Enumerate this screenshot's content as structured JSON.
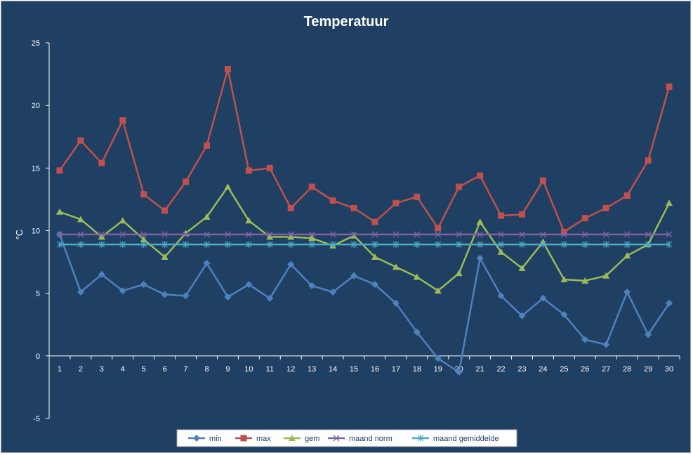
{
  "chart_data": {
    "type": "line",
    "title": "Temperatuur",
    "xlabel": "",
    "ylabel": "°C",
    "ylim": [
      -5,
      25
    ],
    "yticks": [
      -5,
      0,
      5,
      10,
      15,
      20,
      25
    ],
    "grid": false,
    "legend_position": "bottom",
    "categories": [
      "1",
      "2",
      "3",
      "4",
      "5",
      "6",
      "7",
      "8",
      "9",
      "10",
      "11",
      "12",
      "13",
      "14",
      "15",
      "16",
      "17",
      "18",
      "19",
      "20",
      "21",
      "22",
      "23",
      "24",
      "25",
      "26",
      "27",
      "28",
      "29",
      "30"
    ],
    "series": [
      {
        "name": "min",
        "color": "#4f81bd",
        "marker": "diamond",
        "values": [
          9.7,
          5.1,
          6.5,
          5.2,
          5.7,
          4.9,
          4.8,
          7.4,
          4.7,
          5.7,
          4.6,
          7.3,
          5.6,
          5.1,
          6.4,
          5.7,
          4.2,
          1.9,
          -0.2,
          -1.3,
          7.8,
          4.8,
          3.2,
          4.6,
          3.3,
          1.3,
          0.9,
          5.1,
          1.7,
          4.2
        ]
      },
      {
        "name": "max",
        "color": "#c0504d",
        "marker": "square",
        "values": [
          14.8,
          17.2,
          15.4,
          18.8,
          12.9,
          11.6,
          13.9,
          16.8,
          22.9,
          14.8,
          15.0,
          11.8,
          13.5,
          12.4,
          11.8,
          10.7,
          12.2,
          12.7,
          10.2,
          13.5,
          14.4,
          11.2,
          11.3,
          14.0,
          9.9,
          11.0,
          11.8,
          12.8,
          15.6,
          21.5
        ]
      },
      {
        "name": "gem",
        "color": "#9bbb59",
        "marker": "triangle",
        "values": [
          11.5,
          10.9,
          9.5,
          10.8,
          9.3,
          7.9,
          9.8,
          11.1,
          13.5,
          10.8,
          9.5,
          9.5,
          9.4,
          8.8,
          9.6,
          7.9,
          7.1,
          6.3,
          5.2,
          6.6,
          10.7,
          8.3,
          7.0,
          9.1,
          6.1,
          6.0,
          6.4,
          8.0,
          8.9,
          12.2
        ]
      },
      {
        "name": "maand norm",
        "color": "#8064a2",
        "marker": "x",
        "values": [
          9.7,
          9.7,
          9.7,
          9.7,
          9.7,
          9.7,
          9.7,
          9.7,
          9.7,
          9.7,
          9.7,
          9.7,
          9.7,
          9.7,
          9.7,
          9.7,
          9.7,
          9.7,
          9.7,
          9.7,
          9.7,
          9.7,
          9.7,
          9.7,
          9.7,
          9.7,
          9.7,
          9.7,
          9.7,
          9.7
        ]
      },
      {
        "name": "maand gemiddelde",
        "color": "#4bacc6",
        "marker": "star",
        "values": [
          8.9,
          8.9,
          8.9,
          8.9,
          8.9,
          8.9,
          8.9,
          8.9,
          8.9,
          8.9,
          8.9,
          8.9,
          8.9,
          8.9,
          8.9,
          8.9,
          8.9,
          8.9,
          8.9,
          8.9,
          8.9,
          8.9,
          8.9,
          8.9,
          8.9,
          8.9,
          8.9,
          8.9,
          8.9,
          8.9
        ]
      }
    ]
  }
}
